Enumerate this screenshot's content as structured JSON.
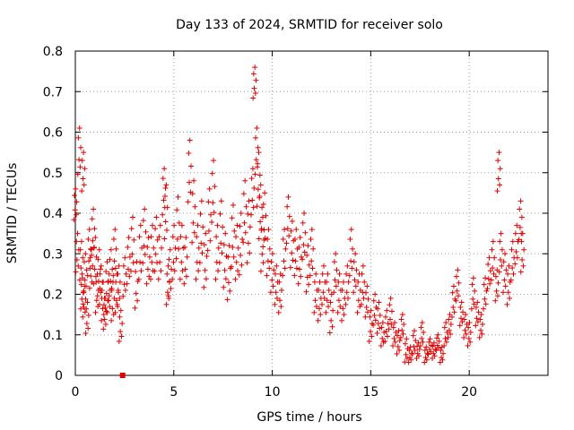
{
  "chart_data": {
    "type": "scatter",
    "title": "Day 133 of 2024, SRMTID for receiver solo",
    "xlabel": "GPS time / hours",
    "ylabel": "SRMTID / TECUs",
    "xlim": [
      0,
      24
    ],
    "ylim": [
      0,
      0.8
    ],
    "x_ticks": [
      0,
      5,
      10,
      15,
      20
    ],
    "x_tick_labels": [
      "0",
      "5",
      "10",
      "15",
      "20"
    ],
    "y_ticks": [
      0,
      0.1,
      0.2,
      0.3,
      0.4,
      0.5,
      0.6,
      0.7,
      0.8
    ],
    "y_tick_labels": [
      "0",
      "0.1",
      "0.2",
      "0.3",
      "0.4",
      "0.5",
      "0.6",
      "0.7",
      "0.8"
    ],
    "grid": true,
    "marker": "+",
    "color": "#e00000",
    "series": [
      {
        "name": "SRMTID",
        "x": [
          0.0,
          0.1,
          0.2,
          0.3,
          0.35,
          0.4,
          0.45,
          0.5,
          0.6,
          0.7,
          0.8,
          0.9,
          1.0,
          1.1,
          1.2,
          1.3,
          1.4,
          1.5,
          1.6,
          1.7,
          1.8,
          1.9,
          2.0,
          2.1,
          2.2,
          2.3,
          2.5,
          2.7,
          2.9,
          3.1,
          3.3,
          3.5,
          3.7,
          3.9,
          4.1,
          4.3,
          4.5,
          4.6,
          4.7,
          4.8,
          5.0,
          5.2,
          5.4,
          5.6,
          5.8,
          6.0,
          6.2,
          6.4,
          6.6,
          6.8,
          7.0,
          7.2,
          7.4,
          7.6,
          7.8,
          8.0,
          8.2,
          8.4,
          8.6,
          8.8,
          9.0,
          9.1,
          9.2,
          9.3,
          9.4,
          9.5,
          9.6,
          9.8,
          10.0,
          10.2,
          10.4,
          10.6,
          10.8,
          11.0,
          11.2,
          11.4,
          11.6,
          11.8,
          12.0,
          12.2,
          12.4,
          12.6,
          12.8,
          13.0,
          13.2,
          13.4,
          13.6,
          13.8,
          14.0,
          14.2,
          14.4,
          14.6,
          14.8,
          15.0,
          15.2,
          15.4,
          15.6,
          15.8,
          16.0,
          16.2,
          16.4,
          16.6,
          16.8,
          17.0,
          17.2,
          17.4,
          17.6,
          17.8,
          18.0,
          18.2,
          18.4,
          18.6,
          18.8,
          19.0,
          19.2,
          19.4,
          19.6,
          19.8,
          20.0,
          20.2,
          20.4,
          20.6,
          20.8,
          21.0,
          21.2,
          21.4,
          21.5,
          21.6,
          21.8,
          22.0,
          22.2,
          22.4,
          22.6,
          22.7
        ],
        "y": [
          0.42,
          0.3,
          0.55,
          0.28,
          0.2,
          0.5,
          0.18,
          0.25,
          0.14,
          0.3,
          0.26,
          0.35,
          0.28,
          0.2,
          0.25,
          0.22,
          0.18,
          0.15,
          0.22,
          0.2,
          0.25,
          0.18,
          0.3,
          0.2,
          0.22,
          0.12,
          0.24,
          0.28,
          0.32,
          0.22,
          0.3,
          0.34,
          0.28,
          0.3,
          0.32,
          0.3,
          0.45,
          0.4,
          0.22,
          0.25,
          0.3,
          0.36,
          0.3,
          0.28,
          0.5,
          0.4,
          0.3,
          0.35,
          0.28,
          0.38,
          0.45,
          0.3,
          0.35,
          0.28,
          0.25,
          0.34,
          0.3,
          0.32,
          0.4,
          0.35,
          0.45,
          0.72,
          0.55,
          0.48,
          0.4,
          0.32,
          0.38,
          0.3,
          0.25,
          0.22,
          0.2,
          0.3,
          0.38,
          0.32,
          0.3,
          0.28,
          0.34,
          0.26,
          0.3,
          0.2,
          0.18,
          0.22,
          0.2,
          0.15,
          0.25,
          0.2,
          0.18,
          0.22,
          0.3,
          0.25,
          0.2,
          0.22,
          0.18,
          0.12,
          0.16,
          0.14,
          0.1,
          0.12,
          0.15,
          0.1,
          0.08,
          0.12,
          0.06,
          0.05,
          0.08,
          0.06,
          0.1,
          0.05,
          0.07,
          0.06,
          0.08,
          0.05,
          0.1,
          0.12,
          0.18,
          0.22,
          0.15,
          0.12,
          0.1,
          0.2,
          0.15,
          0.12,
          0.2,
          0.25,
          0.28,
          0.22,
          0.5,
          0.3,
          0.25,
          0.22,
          0.28,
          0.32,
          0.38,
          0.3
        ],
        "jitter": [
          0.04,
          0.05,
          0.06,
          0.05,
          0.04,
          0.05,
          0.04,
          0.05,
          0.04,
          0.06,
          0.05,
          0.06,
          0.06,
          0.05,
          0.06,
          0.05,
          0.05,
          0.04,
          0.06,
          0.05,
          0.06,
          0.05,
          0.06,
          0.05,
          0.05,
          0.04,
          0.05,
          0.06,
          0.07,
          0.06,
          0.07,
          0.07,
          0.06,
          0.07,
          0.07,
          0.07,
          0.06,
          0.07,
          0.05,
          0.06,
          0.07,
          0.08,
          0.07,
          0.06,
          0.08,
          0.08,
          0.07,
          0.08,
          0.07,
          0.08,
          0.08,
          0.07,
          0.08,
          0.07,
          0.07,
          0.08,
          0.07,
          0.08,
          0.08,
          0.08,
          0.06,
          0.04,
          0.06,
          0.07,
          0.07,
          0.07,
          0.07,
          0.06,
          0.05,
          0.05,
          0.05,
          0.06,
          0.06,
          0.06,
          0.06,
          0.06,
          0.06,
          0.06,
          0.06,
          0.05,
          0.05,
          0.05,
          0.05,
          0.05,
          0.05,
          0.05,
          0.05,
          0.05,
          0.06,
          0.05,
          0.05,
          0.05,
          0.04,
          0.04,
          0.04,
          0.04,
          0.03,
          0.04,
          0.04,
          0.03,
          0.03,
          0.03,
          0.03,
          0.02,
          0.03,
          0.02,
          0.03,
          0.02,
          0.02,
          0.02,
          0.02,
          0.02,
          0.03,
          0.03,
          0.04,
          0.04,
          0.03,
          0.03,
          0.03,
          0.04,
          0.03,
          0.03,
          0.04,
          0.04,
          0.05,
          0.04,
          0.05,
          0.05,
          0.05,
          0.05,
          0.05,
          0.05,
          0.05,
          0.05
        ]
      }
    ],
    "annotations": [
      {
        "type": "marker",
        "shape": "filled-square",
        "x": 2.4,
        "y": 0.0
      }
    ]
  }
}
